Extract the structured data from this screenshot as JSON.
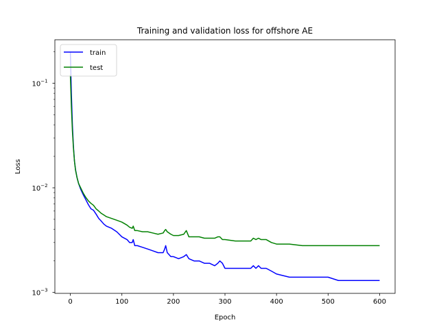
{
  "chart_data": {
    "type": "line",
    "title": "Training and validation loss for offshore AE",
    "xlabel": "Epoch",
    "ylabel": "Loss",
    "yscale": "log",
    "xlim": [
      -30,
      630
    ],
    "ylim": [
      0.00098,
      0.26
    ],
    "xticks": [
      0,
      100,
      200,
      300,
      400,
      500,
      600
    ],
    "yticks": [
      {
        "value": 0.001,
        "base": "10",
        "exp": "−3"
      },
      {
        "value": 0.01,
        "base": "10",
        "exp": "−2"
      },
      {
        "value": 0.1,
        "base": "10",
        "exp": "−1"
      }
    ],
    "legend_position": "upper-left",
    "series": [
      {
        "name": "train",
        "color": "#0000ff",
        "points": [
          [
            0,
            0.2
          ],
          [
            2,
            0.08
          ],
          [
            4,
            0.04
          ],
          [
            6,
            0.025
          ],
          [
            8,
            0.018
          ],
          [
            10,
            0.015
          ],
          [
            13,
            0.0125
          ],
          [
            16,
            0.011
          ],
          [
            20,
            0.0097
          ],
          [
            25,
            0.0086
          ],
          [
            30,
            0.0077
          ],
          [
            35,
            0.0069
          ],
          [
            40,
            0.0063
          ],
          [
            45,
            0.0061
          ],
          [
            50,
            0.0056
          ],
          [
            55,
            0.0051
          ],
          [
            60,
            0.0048
          ],
          [
            65,
            0.0045
          ],
          [
            70,
            0.0043
          ],
          [
            80,
            0.0041
          ],
          [
            90,
            0.0038
          ],
          [
            100,
            0.0034
          ],
          [
            110,
            0.0032
          ],
          [
            115,
            0.003
          ],
          [
            120,
            0.003
          ],
          [
            122,
            0.0032
          ],
          [
            125,
            0.0028
          ],
          [
            130,
            0.0028
          ],
          [
            140,
            0.0027
          ],
          [
            150,
            0.0026
          ],
          [
            160,
            0.0025
          ],
          [
            170,
            0.0024
          ],
          [
            180,
            0.0024
          ],
          [
            183,
            0.0026
          ],
          [
            185,
            0.0028
          ],
          [
            188,
            0.0024
          ],
          [
            195,
            0.0022
          ],
          [
            200,
            0.0022
          ],
          [
            210,
            0.0021
          ],
          [
            220,
            0.0022
          ],
          [
            225,
            0.0023
          ],
          [
            230,
            0.0021
          ],
          [
            240,
            0.002
          ],
          [
            250,
            0.002
          ],
          [
            260,
            0.0019
          ],
          [
            270,
            0.0019
          ],
          [
            280,
            0.0018
          ],
          [
            286,
            0.0019
          ],
          [
            290,
            0.002
          ],
          [
            295,
            0.0019
          ],
          [
            300,
            0.0017
          ],
          [
            320,
            0.0017
          ],
          [
            340,
            0.0017
          ],
          [
            350,
            0.0017
          ],
          [
            355,
            0.0018
          ],
          [
            360,
            0.0017
          ],
          [
            365,
            0.0018
          ],
          [
            370,
            0.0017
          ],
          [
            380,
            0.0017
          ],
          [
            390,
            0.0016
          ],
          [
            400,
            0.0015
          ],
          [
            425,
            0.0014
          ],
          [
            450,
            0.0014
          ],
          [
            475,
            0.0014
          ],
          [
            500,
            0.0014
          ],
          [
            520,
            0.0013
          ],
          [
            550,
            0.0013
          ],
          [
            575,
            0.0013
          ],
          [
            600,
            0.0013
          ]
        ]
      },
      {
        "name": "test",
        "color": "#008000",
        "points": [
          [
            0,
            0.12
          ],
          [
            2,
            0.06
          ],
          [
            4,
            0.035
          ],
          [
            6,
            0.024
          ],
          [
            8,
            0.018
          ],
          [
            10,
            0.0148
          ],
          [
            13,
            0.0125
          ],
          [
            16,
            0.011
          ],
          [
            20,
            0.01
          ],
          [
            25,
            0.0089
          ],
          [
            30,
            0.0081
          ],
          [
            35,
            0.0075
          ],
          [
            40,
            0.0071
          ],
          [
            45,
            0.0068
          ],
          [
            50,
            0.0063
          ],
          [
            55,
            0.006
          ],
          [
            60,
            0.0057
          ],
          [
            65,
            0.0055
          ],
          [
            70,
            0.0053
          ],
          [
            80,
            0.0051
          ],
          [
            90,
            0.0049
          ],
          [
            100,
            0.0047
          ],
          [
            110,
            0.0044
          ],
          [
            115,
            0.0042
          ],
          [
            120,
            0.0041
          ],
          [
            122,
            0.0043
          ],
          [
            125,
            0.0039
          ],
          [
            130,
            0.0039
          ],
          [
            140,
            0.0038
          ],
          [
            150,
            0.0038
          ],
          [
            160,
            0.0037
          ],
          [
            170,
            0.0036
          ],
          [
            180,
            0.0037
          ],
          [
            183,
            0.0039
          ],
          [
            185,
            0.004
          ],
          [
            188,
            0.0038
          ],
          [
            195,
            0.0036
          ],
          [
            200,
            0.0035
          ],
          [
            210,
            0.0035
          ],
          [
            220,
            0.0036
          ],
          [
            225,
            0.0039
          ],
          [
            230,
            0.0034
          ],
          [
            240,
            0.0034
          ],
          [
            250,
            0.0034
          ],
          [
            260,
            0.0033
          ],
          [
            270,
            0.0033
          ],
          [
            280,
            0.0033
          ],
          [
            286,
            0.0034
          ],
          [
            290,
            0.0034
          ],
          [
            295,
            0.0032
          ],
          [
            300,
            0.0032
          ],
          [
            320,
            0.0031
          ],
          [
            340,
            0.0031
          ],
          [
            350,
            0.0031
          ],
          [
            355,
            0.0033
          ],
          [
            360,
            0.0032
          ],
          [
            365,
            0.0033
          ],
          [
            370,
            0.0032
          ],
          [
            380,
            0.0032
          ],
          [
            390,
            0.003
          ],
          [
            400,
            0.0029
          ],
          [
            425,
            0.0029
          ],
          [
            450,
            0.0028
          ],
          [
            475,
            0.0028
          ],
          [
            500,
            0.0028
          ],
          [
            520,
            0.0028
          ],
          [
            550,
            0.0028
          ],
          [
            575,
            0.0028
          ],
          [
            600,
            0.0028
          ]
        ]
      }
    ]
  }
}
